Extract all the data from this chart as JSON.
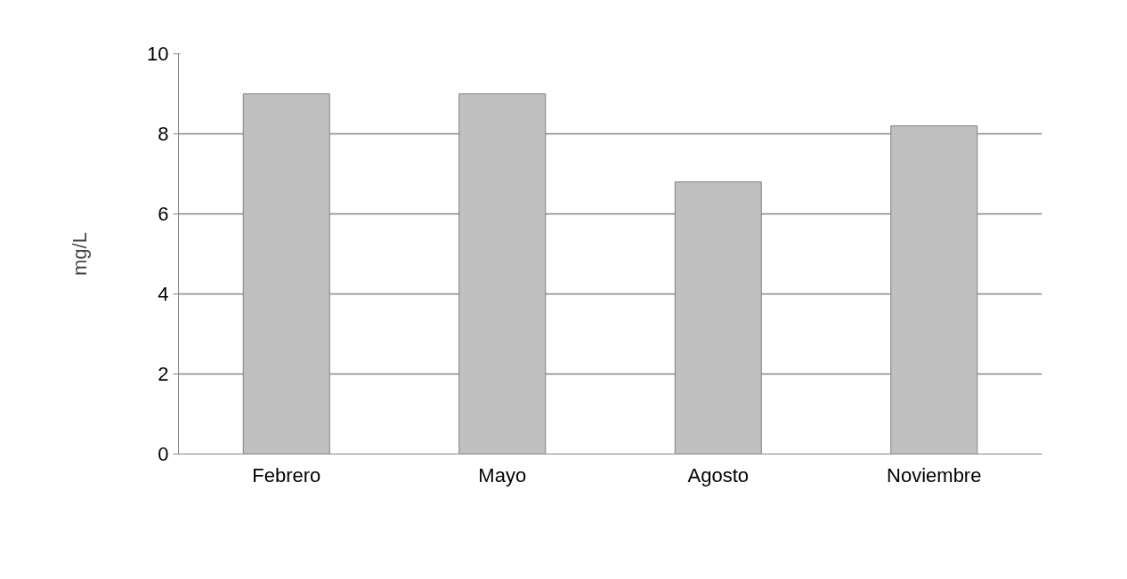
{
  "chart_data": {
    "type": "bar",
    "ylabel": "mg/L",
    "categories": [
      "Febrero",
      "Mayo",
      "Agosto",
      "Noviembre"
    ],
    "values": [
      9.0,
      9.0,
      6.8,
      8.2
    ],
    "color": "#c0c0c0",
    "ylim": [
      0,
      10
    ],
    "yticks": [
      0,
      2,
      4,
      6,
      8,
      10
    ],
    "grid": "y"
  }
}
